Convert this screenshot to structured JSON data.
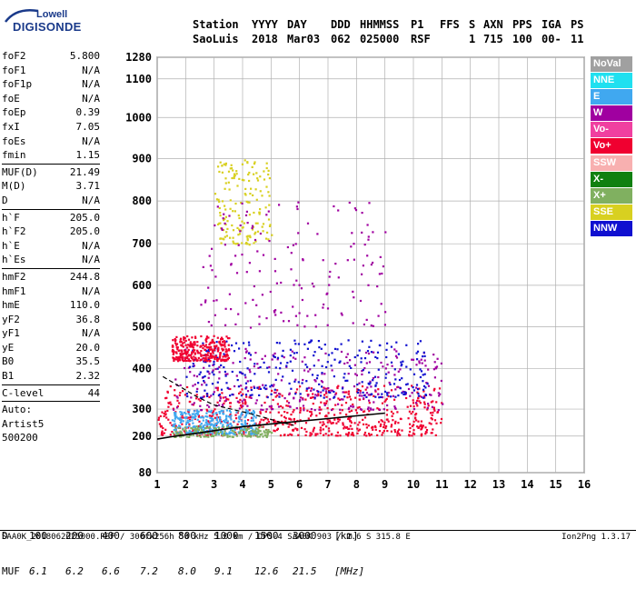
{
  "logo": {
    "line1": "Lowell",
    "line2": "DIGISONDE"
  },
  "header": {
    "labels": [
      "Station",
      "YYYY",
      "DAY",
      "DDD",
      "HHMMSS",
      "P1",
      "FFS",
      "S",
      "AXN",
      "PPS",
      "IGA",
      "PS"
    ],
    "values": [
      "SaoLuis",
      "2018",
      "Mar03",
      "062",
      "025000",
      "RSF",
      "1",
      "715",
      "100",
      "00-",
      "11"
    ]
  },
  "params": [
    {
      "name": "foF2",
      "value": "5.800"
    },
    {
      "name": "foF1",
      "value": "N/A"
    },
    {
      "name": "foF1p",
      "value": "N/A"
    },
    {
      "name": "foE",
      "value": "N/A"
    },
    {
      "name": "foEp",
      "value": "0.39"
    },
    {
      "name": "fxI",
      "value": "7.05"
    },
    {
      "name": "foEs",
      "value": "N/A"
    },
    {
      "name": "fmin",
      "value": "1.15"
    },
    {
      "sep": true
    },
    {
      "name": "MUF(D)",
      "value": "21.49"
    },
    {
      "name": "M(D)",
      "value": "3.71"
    },
    {
      "name": "D",
      "value": "N/A"
    },
    {
      "sep": true
    },
    {
      "name": "h`F",
      "value": "205.0"
    },
    {
      "name": "h`F2",
      "value": "205.0"
    },
    {
      "name": "h`E",
      "value": "N/A"
    },
    {
      "name": "h`Es",
      "value": "N/A"
    },
    {
      "sep": true
    },
    {
      "name": "hmF2",
      "value": "244.8"
    },
    {
      "name": "hmF1",
      "value": "N/A"
    },
    {
      "name": "hmE",
      "value": "110.0"
    },
    {
      "name": "yF2",
      "value": "36.8"
    },
    {
      "name": "yF1",
      "value": "N/A"
    },
    {
      "name": "yE",
      "value": "20.0"
    },
    {
      "name": "B0",
      "value": "35.5"
    },
    {
      "name": "B1",
      "value": "2.32"
    },
    {
      "sep": true
    },
    {
      "name": "C-level",
      "value": "44"
    },
    {
      "sep": true
    },
    {
      "name": "Auto:",
      "value": ""
    },
    {
      "name": "Artist5",
      "value": ""
    },
    {
      "name": "500200",
      "value": ""
    }
  ],
  "legend": [
    {
      "label": "NoVal",
      "color": "#a0a0a0"
    },
    {
      "label": "NNE",
      "color": "#20e0f0"
    },
    {
      "label": "E",
      "color": "#40a8f0"
    },
    {
      "label": "W",
      "color": "#a000a0"
    },
    {
      "label": "Vo-",
      "color": "#f040a0"
    },
    {
      "label": "Vo+",
      "color": "#f00030"
    },
    {
      "label": "SSW",
      "color": "#f8b0b0"
    },
    {
      "label": "X-",
      "color": "#108010"
    },
    {
      "label": "X+",
      "color": "#80b060"
    },
    {
      "label": "SSE",
      "color": "#d8d020"
    },
    {
      "label": "NNW",
      "color": "#1010d0"
    }
  ],
  "footer": {
    "d_label": "D",
    "d_values": [
      "100",
      "200",
      "400",
      "600",
      "800",
      "1000",
      "1500",
      "3000",
      "[km]"
    ],
    "muf_label": "MUF",
    "muf_values": [
      "6.1",
      "6.2",
      "6.6",
      "7.2",
      "8.0",
      "9.1",
      "12.6",
      "21.5",
      "[MHz]"
    ],
    "bottom_line": "SAA0K_2018062025000.RSF / 300fx256h 50 kHz 5.0 km / DPS-4 SAA0K 903 / 2.6 S 315.8 E",
    "version": "Ion2Png 1.3.17"
  },
  "chart_data": {
    "type": "scatter",
    "title": "",
    "xlabel": "",
    "ylabel": "",
    "x_ticks": [
      1,
      2,
      3,
      4,
      5,
      6,
      7,
      8,
      9,
      10,
      11,
      12,
      13,
      14,
      15,
      16
    ],
    "y_ticks": [
      80,
      200,
      300,
      400,
      500,
      600,
      700,
      800,
      900,
      1000,
      1100,
      1280
    ],
    "xlim": [
      1,
      16
    ],
    "ylim": [
      80,
      1280
    ],
    "y_scale": "nonlinear (compressed at low heights)",
    "grid": true,
    "trace_curve": {
      "x": [
        1.0,
        1.5,
        2.0,
        2.5,
        3.0,
        3.5,
        4.0,
        5.0,
        6.0,
        7.0,
        8.0,
        9.0
      ],
      "y": [
        190,
        198,
        205,
        212,
        220,
        228,
        235,
        245,
        255,
        265,
        275,
        285
      ]
    },
    "profile_curve": {
      "x": [
        1.2,
        1.8,
        2.4,
        3.0,
        3.6,
        4.2,
        4.8,
        5.3,
        5.8
      ],
      "y": [
        380,
        355,
        330,
        310,
        300,
        285,
        268,
        252,
        240
      ]
    },
    "echo_regions": [
      {
        "mode": "Vo+",
        "x": [
          1.0,
          11.0
        ],
        "y": [
          205,
          360
        ],
        "density": "high"
      },
      {
        "mode": "W",
        "x": [
          1.5,
          11.0
        ],
        "y": [
          300,
          450
        ],
        "density": "medium"
      },
      {
        "mode": "NNW",
        "x": [
          2.0,
          10.5
        ],
        "y": [
          330,
          470
        ],
        "density": "medium"
      },
      {
        "mode": "E",
        "x": [
          1.5,
          4.5
        ],
        "y": [
          210,
          300
        ],
        "density": "medium"
      },
      {
        "mode": "SSE",
        "x": [
          3.0,
          5.0
        ],
        "y": [
          700,
          900
        ],
        "density": "low"
      },
      {
        "mode": "W",
        "x": [
          2.5,
          9.0
        ],
        "y": [
          500,
          800
        ],
        "density": "low"
      },
      {
        "mode": "Vo+",
        "x": [
          1.5,
          3.5
        ],
        "y": [
          420,
          480
        ],
        "density": "medium"
      },
      {
        "mode": "X+",
        "x": [
          1.5,
          5.0
        ],
        "y": [
          200,
          240
        ],
        "density": "low"
      }
    ]
  }
}
